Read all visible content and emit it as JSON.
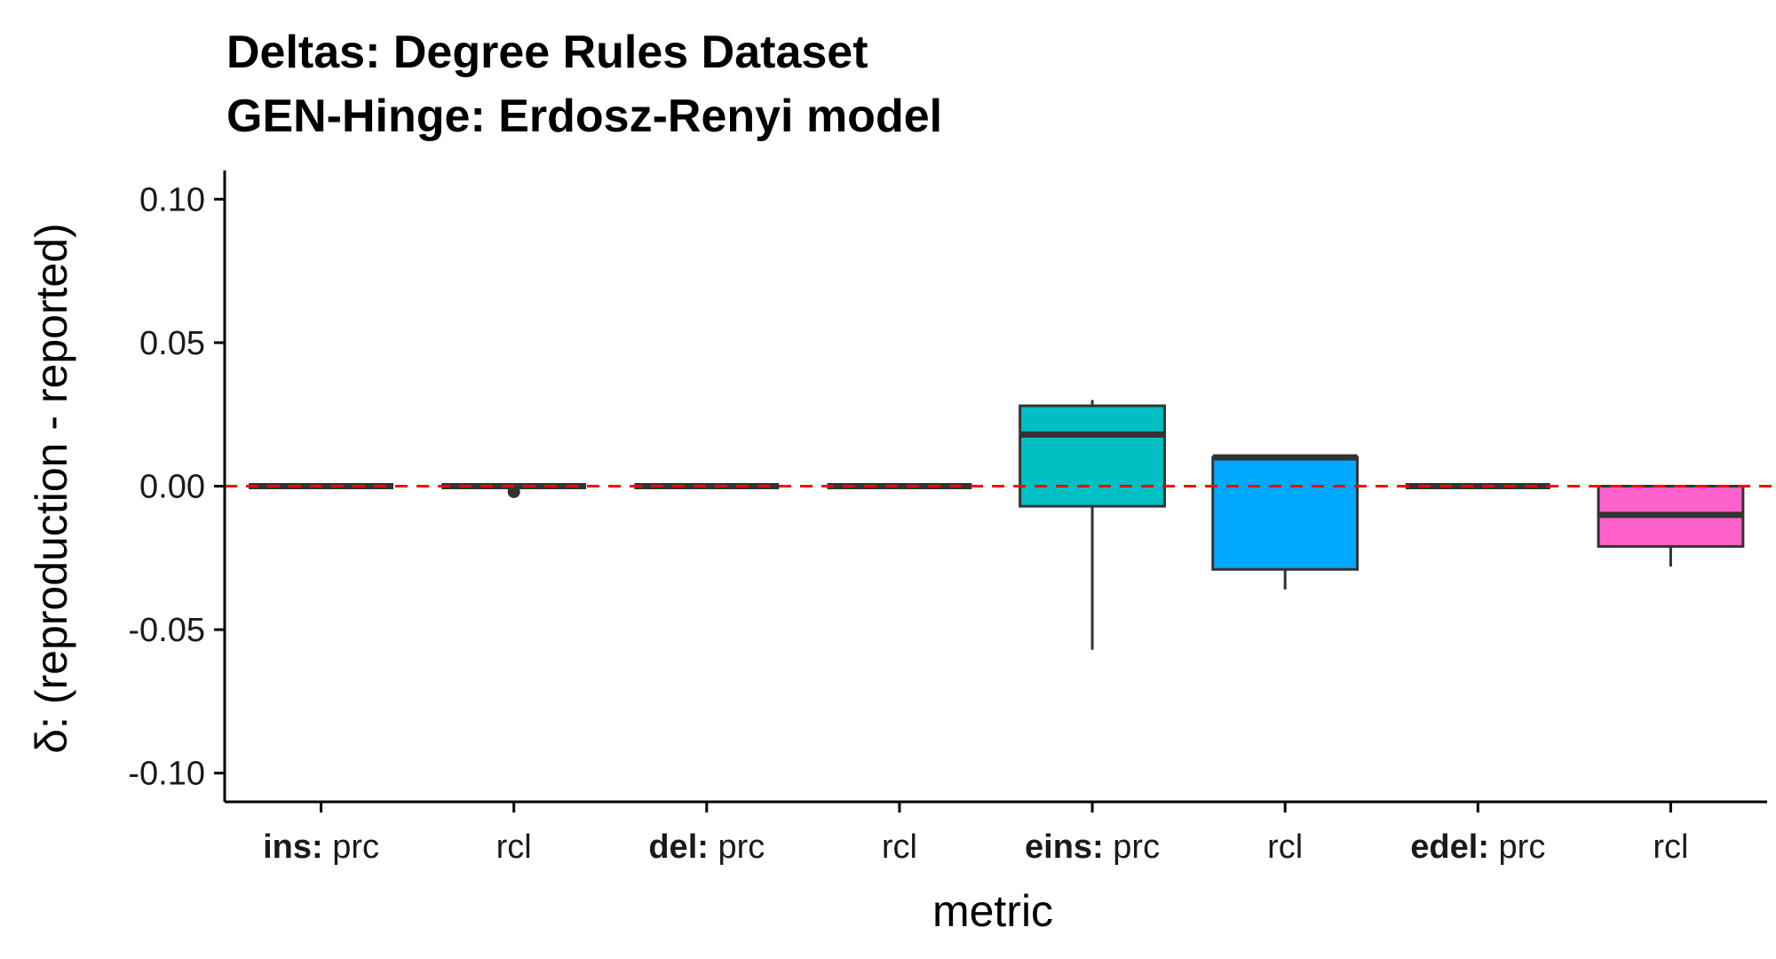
{
  "chart_data": {
    "type": "box",
    "title_line1": "Deltas: Degree Rules Dataset",
    "title_line2": "GEN-Hinge: Erdosz-Renyi model",
    "xlabel": "metric",
    "ylabel": "δ: (reproduction - reported)",
    "ylim": [
      -0.11,
      0.11
    ],
    "yticks": [
      0.1,
      0.05,
      0.0,
      -0.05,
      -0.1
    ],
    "ytick_labels": [
      "0.10",
      "0.05",
      "0.00",
      "-0.05",
      "-0.10"
    ],
    "reference_line": {
      "y": 0,
      "color": "#ff0000",
      "style": "dashed"
    },
    "grid": false,
    "categories": [
      {
        "group": "ins:",
        "metric": "prc",
        "whisker_low": 0,
        "q1": 0,
        "median": 0,
        "q3": 0,
        "whisker_high": 0,
        "outliers": [],
        "fill": "#F8766D"
      },
      {
        "group": "",
        "metric": "rcl",
        "whisker_low": 0,
        "q1": 0,
        "median": 0,
        "q3": 0,
        "whisker_high": 0,
        "outliers": [
          -0.002
        ],
        "fill": "#F8766D"
      },
      {
        "group": "del:",
        "metric": "prc",
        "whisker_low": 0,
        "q1": 0,
        "median": 0,
        "q3": 0,
        "whisker_high": 0,
        "outliers": [],
        "fill": "#7CAE00"
      },
      {
        "group": "",
        "metric": "rcl",
        "whisker_low": 0,
        "q1": 0,
        "median": 0,
        "q3": 0,
        "whisker_high": 0,
        "outliers": [],
        "fill": "#7CAE00"
      },
      {
        "group": "eins:",
        "metric": "prc",
        "whisker_low": -0.057,
        "q1": -0.007,
        "median": 0.018,
        "q3": 0.028,
        "whisker_high": 0.03,
        "outliers": [],
        "fill": "#00BFC4"
      },
      {
        "group": "",
        "metric": "rcl",
        "whisker_low": -0.036,
        "q1": -0.029,
        "median": 0.01,
        "q3": 0.01,
        "whisker_high": 0.01,
        "outliers": [],
        "fill": "#00A9FF"
      },
      {
        "group": "edel:",
        "metric": "prc",
        "whisker_low": 0,
        "q1": 0,
        "median": 0,
        "q3": 0,
        "whisker_high": 0,
        "outliers": [],
        "fill": "#C77CFF"
      },
      {
        "group": "",
        "metric": "rcl",
        "whisker_low": -0.028,
        "q1": -0.021,
        "median": -0.01,
        "q3": 0,
        "whisker_high": 0,
        "outliers": [],
        "fill": "#FF61CC"
      }
    ],
    "box_stroke": "#333333"
  }
}
